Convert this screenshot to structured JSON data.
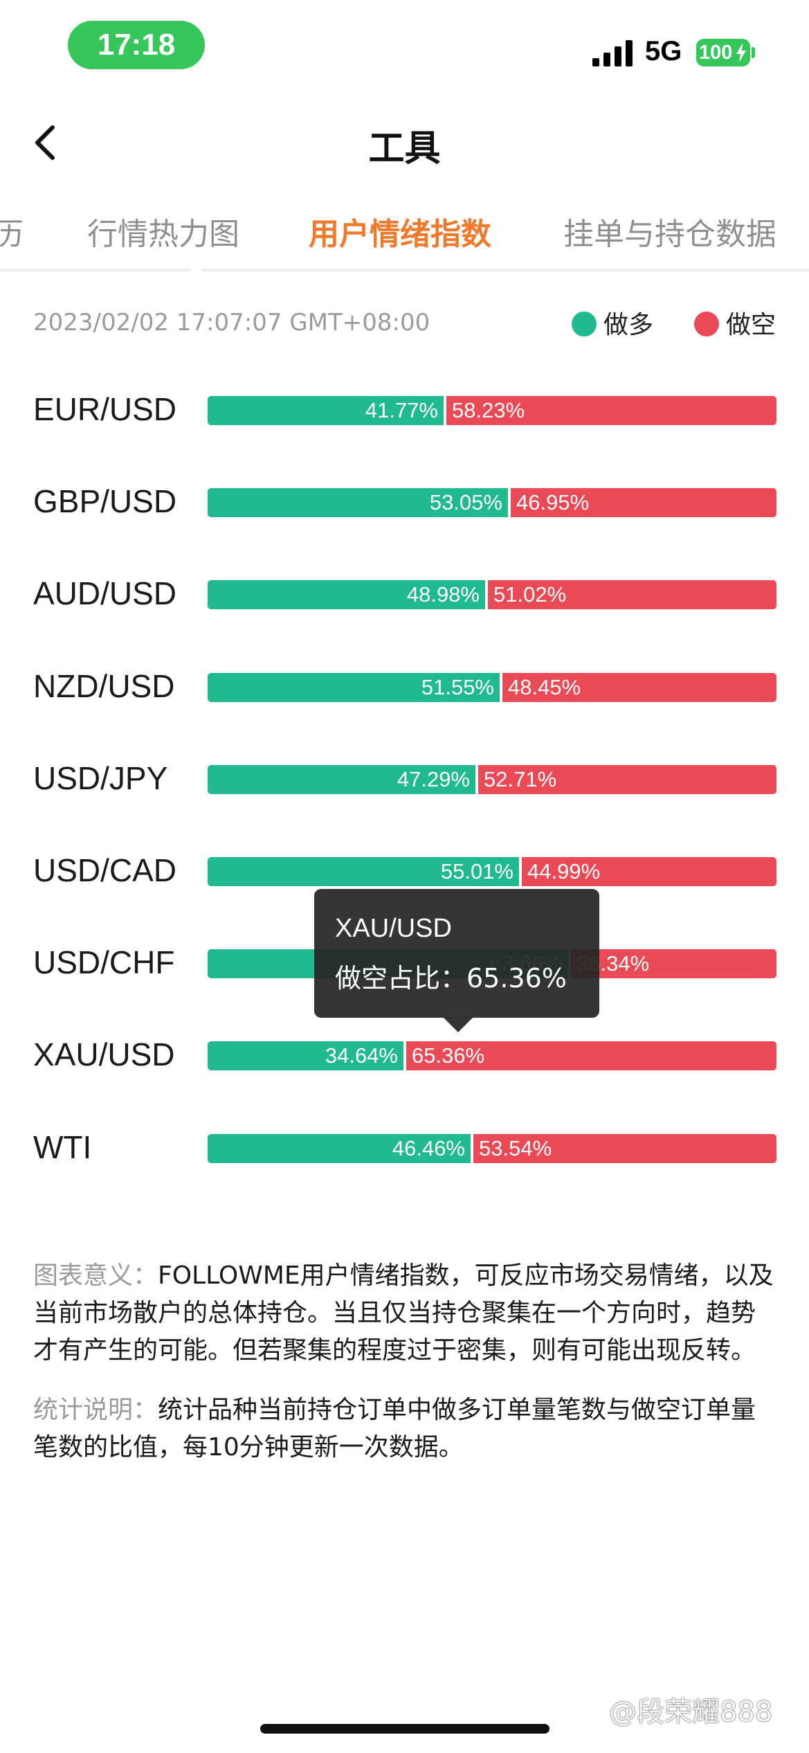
{
  "status_bar": {
    "time": "17:18",
    "network": "5G",
    "battery": "100"
  },
  "header": {
    "title": "工具"
  },
  "tabs": [
    {
      "label": "历",
      "active": false
    },
    {
      "label": "行情热力图",
      "active": false
    },
    {
      "label": "用户情绪指数",
      "active": true
    },
    {
      "label": "挂单与持仓数据",
      "active": false
    }
  ],
  "colors": {
    "long": "#21b98f",
    "short": "#e94a56",
    "accent": "#f07a2c"
  },
  "chart_data": {
    "type": "bar",
    "timestamp": "2023/02/02 17:07:07 GMT+08:00",
    "legend": {
      "long_label": "做多",
      "short_label": "做空"
    },
    "rows": [
      {
        "symbol": "EUR/USD",
        "long": 41.77,
        "short": 58.23,
        "long_label": "41.77%",
        "short_label": "58.23%"
      },
      {
        "symbol": "GBP/USD",
        "long": 53.05,
        "short": 46.95,
        "long_label": "53.05%",
        "short_label": "46.95%"
      },
      {
        "symbol": "AUD/USD",
        "long": 48.98,
        "short": 51.02,
        "long_label": "48.98%",
        "short_label": "51.02%"
      },
      {
        "symbol": "NZD/USD",
        "long": 51.55,
        "short": 48.45,
        "long_label": "51.55%",
        "short_label": "48.45%"
      },
      {
        "symbol": "USD/JPY",
        "long": 47.29,
        "short": 52.71,
        "long_label": "47.29%",
        "short_label": "52.71%"
      },
      {
        "symbol": "USD/CAD",
        "long": 55.01,
        "short": 44.99,
        "long_label": "55.01%",
        "short_label": "44.99%"
      },
      {
        "symbol": "USD/CHF",
        "long": 63.66,
        "short": 36.34,
        "long_label": "63.66%",
        "short_label": "36.34%"
      },
      {
        "symbol": "XAU/USD",
        "long": 34.64,
        "short": 65.36,
        "long_label": "34.64%",
        "short_label": "65.36%"
      },
      {
        "symbol": "WTI",
        "long": 46.46,
        "short": 53.54,
        "long_label": "46.46%",
        "short_label": "53.54%"
      }
    ]
  },
  "tooltip": {
    "symbol": "XAU/USD",
    "text": "做空占比：65.36%"
  },
  "description": {
    "meaning_label": "图表意义：",
    "meaning_text": "FOLLOWME用户情绪指数，可反应市场交易情绪，以及当前市场散户的总体持仓。当且仅当持仓聚集在一个方向时，趋势才有产生的可能。但若聚集的程度过于密集，则有可能出现反转。",
    "stats_label": "统计说明：",
    "stats_text": "统计品种当前持仓订单中做多订单量笔数与做空订单量笔数的比值，每10分钟更新一次数据。"
  },
  "watermark": "@段荣耀888"
}
